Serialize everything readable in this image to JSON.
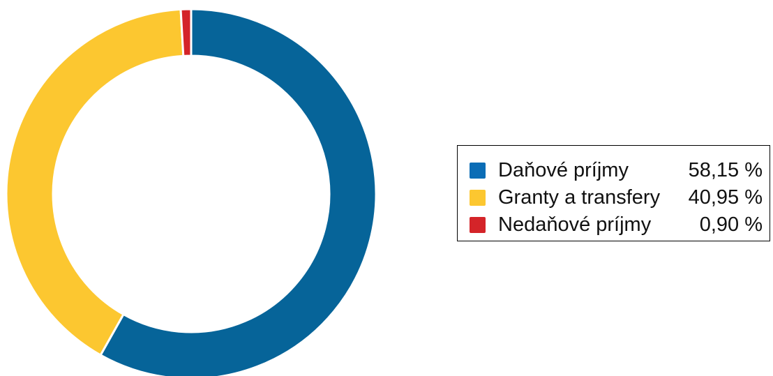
{
  "chart_data": {
    "type": "pie",
    "variant": "donut",
    "title": "",
    "slices": [
      {
        "label": "Daňové príjmy",
        "value": 58.15,
        "value_text": "58,15 %",
        "color": "#066499"
      },
      {
        "label": "Granty a transfery",
        "value": 40.95,
        "value_text": "40,95 %",
        "color": "#fcc730"
      },
      {
        "label": "Nedaňové príjmy",
        "value": 0.9,
        "value_text": "0,90 %",
        "color": "#d42429"
      }
    ],
    "legend_placement": "right",
    "legend_swatch_colors": [
      "#0b6db6",
      "#fcc730",
      "#d42429"
    ]
  }
}
